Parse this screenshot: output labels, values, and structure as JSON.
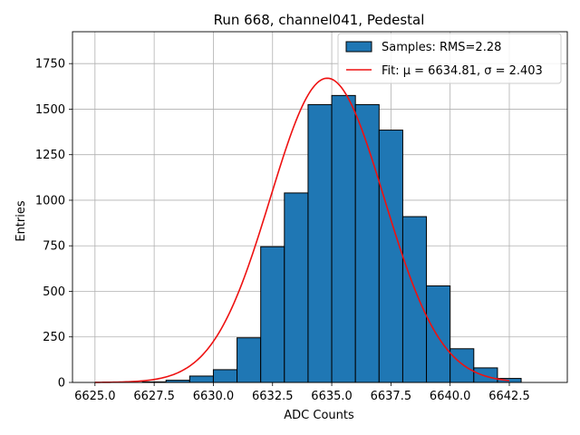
{
  "chart_data": {
    "type": "bar",
    "title": "Run 668, channel041, Pedestal",
    "xlabel": "ADC Counts",
    "ylabel": "Entries",
    "xlim": [
      6624.05,
      6644.95
    ],
    "ylim": [
      0,
      1925
    ],
    "xticks": [
      6625.0,
      6627.5,
      6630.0,
      6632.5,
      6635.0,
      6637.5,
      6640.0,
      6642.5
    ],
    "xtick_labels": [
      "6625.0",
      "6627.5",
      "6630.0",
      "6632.5",
      "6635.0",
      "6637.5",
      "6640.0",
      "6642.5"
    ],
    "yticks": [
      0,
      250,
      500,
      750,
      1000,
      1250,
      1500,
      1750
    ],
    "ytick_labels": [
      "0",
      "250",
      "500",
      "750",
      "1000",
      "1250",
      "1500",
      "1750"
    ],
    "grid": true,
    "legend_position": "top-right",
    "bin_width": 1,
    "bins": [
      {
        "x": 6627,
        "value": 3
      },
      {
        "x": 6628,
        "value": 12
      },
      {
        "x": 6629,
        "value": 35
      },
      {
        "x": 6630,
        "value": 70
      },
      {
        "x": 6631,
        "value": 245
      },
      {
        "x": 6632,
        "value": 745
      },
      {
        "x": 6633,
        "value": 1040
      },
      {
        "x": 6634,
        "value": 1525
      },
      {
        "x": 6635,
        "value": 1575
      },
      {
        "x": 6636,
        "value": 1525
      },
      {
        "x": 6637,
        "value": 1385
      },
      {
        "x": 6638,
        "value": 910
      },
      {
        "x": 6639,
        "value": 530
      },
      {
        "x": 6640,
        "value": 185
      },
      {
        "x": 6641,
        "value": 80
      },
      {
        "x": 6642,
        "value": 22
      }
    ],
    "series": [
      {
        "name": "Samples: RMS=2.28",
        "kind": "histogram",
        "color": "#1f77b4"
      },
      {
        "name": "Fit: μ = 6634.81, σ = 2.403",
        "kind": "line",
        "color": "#ee1111",
        "fit": {
          "mu": 6634.81,
          "sigma": 2.403,
          "amplitude": 1670,
          "x_range": [
            6625.0,
            6642.5
          ]
        }
      }
    ]
  }
}
